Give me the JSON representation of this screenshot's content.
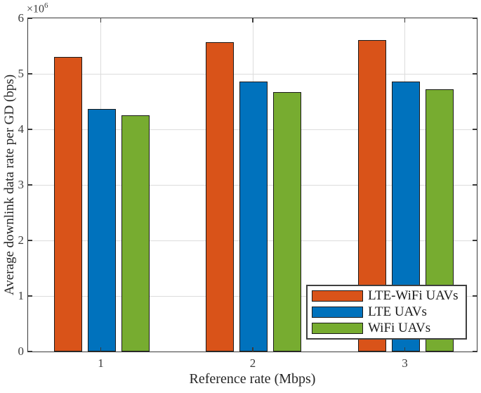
{
  "chart_data": {
    "type": "bar",
    "title": "",
    "xlabel": "Reference rate (Mbps)",
    "ylabel": "Average downlink data rate per GD (bps)",
    "y_multiplier_base": "×10",
    "y_multiplier_exp": "6",
    "categories": [
      "1",
      "2",
      "3"
    ],
    "series": [
      {
        "name": "LTE-WiFi UAVs",
        "color": "#D95319",
        "values": [
          5300000,
          5570000,
          5610000
        ]
      },
      {
        "name": "LTE UAVs",
        "color": "#0072BD",
        "values": [
          4370000,
          4860000,
          4860000
        ]
      },
      {
        "name": "WiFi UAVs",
        "color": "#77AC30",
        "values": [
          4250000,
          4670000,
          4720000
        ]
      }
    ],
    "ylim": [
      0,
      6000000
    ],
    "yticks": [
      0,
      1,
      2,
      3,
      4,
      5,
      6
    ],
    "ytick_scale": 1000000,
    "grid": true,
    "legend_position": "bottom-right"
  },
  "colors": {
    "axis": "#3a3a3a",
    "grid": "#dcdcdc",
    "bar_edge": "#1a1a1a",
    "text": "#262626",
    "background": "#ffffff"
  }
}
